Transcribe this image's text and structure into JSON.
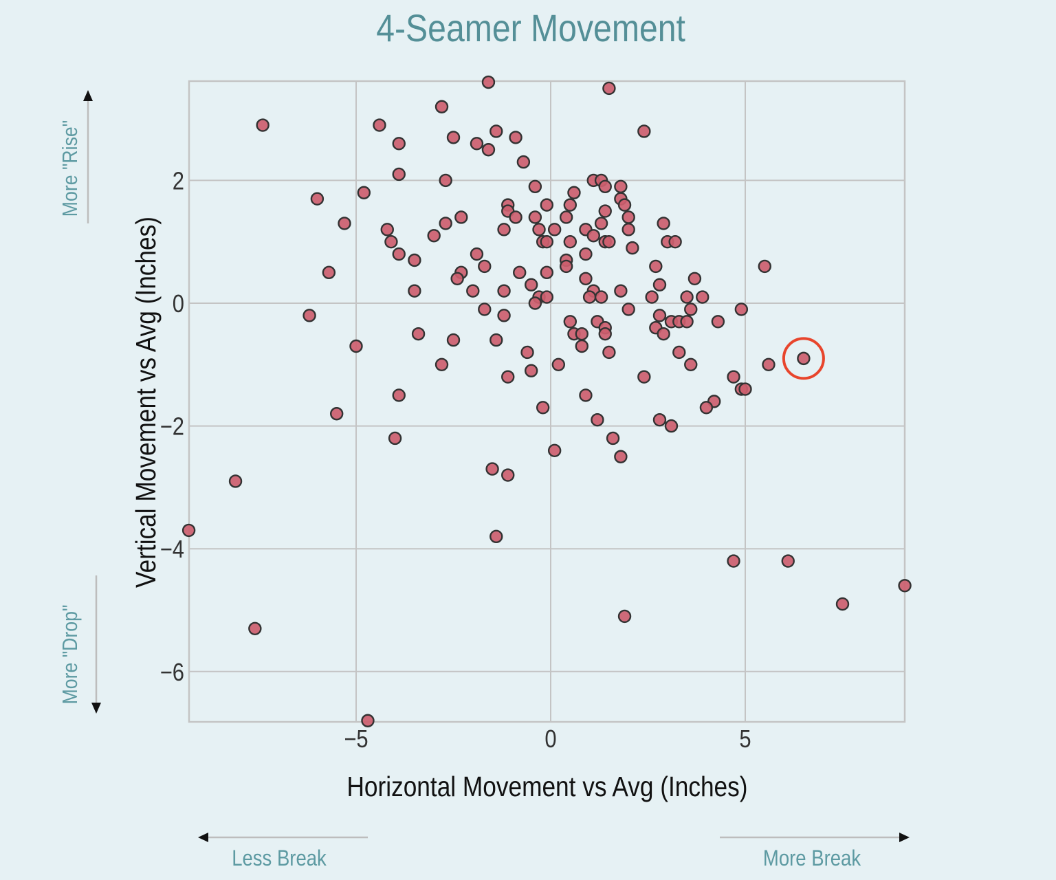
{
  "title": "4-Seamer Movement",
  "colors": {
    "background": "#e6f1f4",
    "title": "#548f97",
    "hint_text": "#5d9aa2",
    "point_fill": "#cd5e6e",
    "point_stroke": "#333333",
    "grid": "#c4c4c4",
    "highlight": "#e8452c"
  },
  "annotations": {
    "more_rise": "More \"Rise\"",
    "more_drop": "More \"Drop\"",
    "less_break": "Less Break",
    "more_break": "More Break"
  },
  "chart_data": {
    "type": "scatter",
    "title": "4-Seamer Movement",
    "xlabel": "Horizontal Movement vs Avg (Inches)",
    "ylabel": "Vertical Movement vs Avg (Inches)",
    "xlim": [
      -9.3,
      9.1
    ],
    "ylim": [
      -6.8,
      3.6
    ],
    "x_ticks": [
      -5,
      0,
      5
    ],
    "x_tick_labels": [
      "−5",
      "0",
      "5"
    ],
    "y_ticks": [
      -6,
      -4,
      -2,
      0,
      2
    ],
    "y_tick_labels": [
      "−6",
      "−4",
      "−2",
      "0",
      "2"
    ],
    "grid": true,
    "legend": null,
    "highlighted_point": {
      "x": 6.5,
      "y": -0.9
    },
    "points": [
      {
        "x": -1.6,
        "y": 3.6
      },
      {
        "x": 1.5,
        "y": 3.5
      },
      {
        "x": -2.8,
        "y": 3.2
      },
      {
        "x": -7.4,
        "y": 2.9
      },
      {
        "x": -4.4,
        "y": 2.9
      },
      {
        "x": -1.4,
        "y": 2.8
      },
      {
        "x": 2.4,
        "y": 2.8
      },
      {
        "x": -2.5,
        "y": 2.7
      },
      {
        "x": -0.9,
        "y": 2.7
      },
      {
        "x": -3.9,
        "y": 2.6
      },
      {
        "x": -1.9,
        "y": 2.6
      },
      {
        "x": -1.6,
        "y": 2.5
      },
      {
        "x": -0.7,
        "y": 2.3
      },
      {
        "x": -3.9,
        "y": 2.1
      },
      {
        "x": -2.7,
        "y": 2.0
      },
      {
        "x": 1.1,
        "y": 2.0
      },
      {
        "x": 1.3,
        "y": 2.0
      },
      {
        "x": -0.4,
        "y": 1.9
      },
      {
        "x": 1.4,
        "y": 1.9
      },
      {
        "x": 1.8,
        "y": 1.9
      },
      {
        "x": -4.8,
        "y": 1.8
      },
      {
        "x": 0.6,
        "y": 1.8
      },
      {
        "x": -6.0,
        "y": 1.7
      },
      {
        "x": 1.8,
        "y": 1.7
      },
      {
        "x": -1.1,
        "y": 1.6
      },
      {
        "x": -0.1,
        "y": 1.6
      },
      {
        "x": 0.5,
        "y": 1.6
      },
      {
        "x": 1.9,
        "y": 1.6
      },
      {
        "x": -1.1,
        "y": 1.5
      },
      {
        "x": 1.4,
        "y": 1.5
      },
      {
        "x": -2.3,
        "y": 1.4
      },
      {
        "x": -0.9,
        "y": 1.4
      },
      {
        "x": -0.4,
        "y": 1.4
      },
      {
        "x": 0.4,
        "y": 1.4
      },
      {
        "x": 2.0,
        "y": 1.4
      },
      {
        "x": -5.3,
        "y": 1.3
      },
      {
        "x": -2.7,
        "y": 1.3
      },
      {
        "x": 1.3,
        "y": 1.3
      },
      {
        "x": 2.9,
        "y": 1.3
      },
      {
        "x": -4.2,
        "y": 1.2
      },
      {
        "x": -1.2,
        "y": 1.2
      },
      {
        "x": -0.3,
        "y": 1.2
      },
      {
        "x": 0.1,
        "y": 1.2
      },
      {
        "x": 0.9,
        "y": 1.2
      },
      {
        "x": 2.0,
        "y": 1.2
      },
      {
        "x": -3.0,
        "y": 1.1
      },
      {
        "x": 1.1,
        "y": 1.1
      },
      {
        "x": -4.1,
        "y": 1.0
      },
      {
        "x": -0.2,
        "y": 1.0
      },
      {
        "x": -0.1,
        "y": 1.0
      },
      {
        "x": 0.5,
        "y": 1.0
      },
      {
        "x": 1.4,
        "y": 1.0
      },
      {
        "x": 1.5,
        "y": 1.0
      },
      {
        "x": 3.0,
        "y": 1.0
      },
      {
        "x": 3.2,
        "y": 1.0
      },
      {
        "x": 2.1,
        "y": 0.9
      },
      {
        "x": -3.9,
        "y": 0.8
      },
      {
        "x": -1.9,
        "y": 0.8
      },
      {
        "x": 0.9,
        "y": 0.8
      },
      {
        "x": -3.5,
        "y": 0.7
      },
      {
        "x": 0.4,
        "y": 0.7
      },
      {
        "x": -1.7,
        "y": 0.6
      },
      {
        "x": 0.4,
        "y": 0.6
      },
      {
        "x": 2.7,
        "y": 0.6
      },
      {
        "x": 5.5,
        "y": 0.6
      },
      {
        "x": -5.7,
        "y": 0.5
      },
      {
        "x": -2.3,
        "y": 0.5
      },
      {
        "x": -0.8,
        "y": 0.5
      },
      {
        "x": -0.1,
        "y": 0.5
      },
      {
        "x": -2.4,
        "y": 0.4
      },
      {
        "x": 0.9,
        "y": 0.4
      },
      {
        "x": 3.7,
        "y": 0.4
      },
      {
        "x": -0.5,
        "y": 0.3
      },
      {
        "x": 2.8,
        "y": 0.3
      },
      {
        "x": -3.5,
        "y": 0.2
      },
      {
        "x": -2.0,
        "y": 0.2
      },
      {
        "x": -1.2,
        "y": 0.2
      },
      {
        "x": 1.1,
        "y": 0.2
      },
      {
        "x": 1.8,
        "y": 0.2
      },
      {
        "x": -0.3,
        "y": 0.1
      },
      {
        "x": -0.1,
        "y": 0.1
      },
      {
        "x": 1.0,
        "y": 0.1
      },
      {
        "x": 1.3,
        "y": 0.1
      },
      {
        "x": 2.6,
        "y": 0.1
      },
      {
        "x": 3.5,
        "y": 0.1
      },
      {
        "x": 3.9,
        "y": 0.1
      },
      {
        "x": -0.4,
        "y": 0.0
      },
      {
        "x": -1.7,
        "y": -0.1
      },
      {
        "x": 2.0,
        "y": -0.1
      },
      {
        "x": 3.6,
        "y": -0.1
      },
      {
        "x": 4.9,
        "y": -0.1
      },
      {
        "x": -6.2,
        "y": -0.2
      },
      {
        "x": -1.2,
        "y": -0.2
      },
      {
        "x": 2.8,
        "y": -0.2
      },
      {
        "x": 0.5,
        "y": -0.3
      },
      {
        "x": 1.2,
        "y": -0.3
      },
      {
        "x": 3.1,
        "y": -0.3
      },
      {
        "x": 3.3,
        "y": -0.3
      },
      {
        "x": 3.5,
        "y": -0.3
      },
      {
        "x": 4.3,
        "y": -0.3
      },
      {
        "x": 1.4,
        "y": -0.4
      },
      {
        "x": 2.7,
        "y": -0.4
      },
      {
        "x": -3.4,
        "y": -0.5
      },
      {
        "x": 0.6,
        "y": -0.5
      },
      {
        "x": 0.8,
        "y": -0.5
      },
      {
        "x": 1.4,
        "y": -0.5
      },
      {
        "x": 2.9,
        "y": -0.5
      },
      {
        "x": -2.5,
        "y": -0.6
      },
      {
        "x": -1.4,
        "y": -0.6
      },
      {
        "x": -5.0,
        "y": -0.7
      },
      {
        "x": 0.8,
        "y": -0.7
      },
      {
        "x": -0.6,
        "y": -0.8
      },
      {
        "x": 1.5,
        "y": -0.8
      },
      {
        "x": 3.3,
        "y": -0.8
      },
      {
        "x": 6.5,
        "y": -0.9
      },
      {
        "x": -2.8,
        "y": -1.0
      },
      {
        "x": 0.2,
        "y": -1.0
      },
      {
        "x": 3.6,
        "y": -1.0
      },
      {
        "x": 5.6,
        "y": -1.0
      },
      {
        "x": -0.5,
        "y": -1.1
      },
      {
        "x": -1.1,
        "y": -1.2
      },
      {
        "x": 2.4,
        "y": -1.2
      },
      {
        "x": 4.7,
        "y": -1.2
      },
      {
        "x": 4.9,
        "y": -1.4
      },
      {
        "x": 5.0,
        "y": -1.4
      },
      {
        "x": -3.9,
        "y": -1.5
      },
      {
        "x": 0.9,
        "y": -1.5
      },
      {
        "x": 4.2,
        "y": -1.6
      },
      {
        "x": -0.2,
        "y": -1.7
      },
      {
        "x": 4.0,
        "y": -1.7
      },
      {
        "x": -5.5,
        "y": -1.8
      },
      {
        "x": 1.2,
        "y": -1.9
      },
      {
        "x": 2.8,
        "y": -1.9
      },
      {
        "x": 3.1,
        "y": -2.0
      },
      {
        "x": -4.0,
        "y": -2.2
      },
      {
        "x": 1.6,
        "y": -2.2
      },
      {
        "x": 0.1,
        "y": -2.4
      },
      {
        "x": 1.8,
        "y": -2.5
      },
      {
        "x": -1.5,
        "y": -2.7
      },
      {
        "x": -1.1,
        "y": -2.8
      },
      {
        "x": -8.1,
        "y": -2.9
      },
      {
        "x": -9.3,
        "y": -3.7
      },
      {
        "x": -1.4,
        "y": -3.8
      },
      {
        "x": 4.7,
        "y": -4.2
      },
      {
        "x": 6.1,
        "y": -4.2
      },
      {
        "x": 9.1,
        "y": -4.6
      },
      {
        "x": 7.5,
        "y": -4.9
      },
      {
        "x": 1.9,
        "y": -5.1
      },
      {
        "x": -7.6,
        "y": -5.3
      },
      {
        "x": -4.7,
        "y": -6.8
      }
    ]
  }
}
